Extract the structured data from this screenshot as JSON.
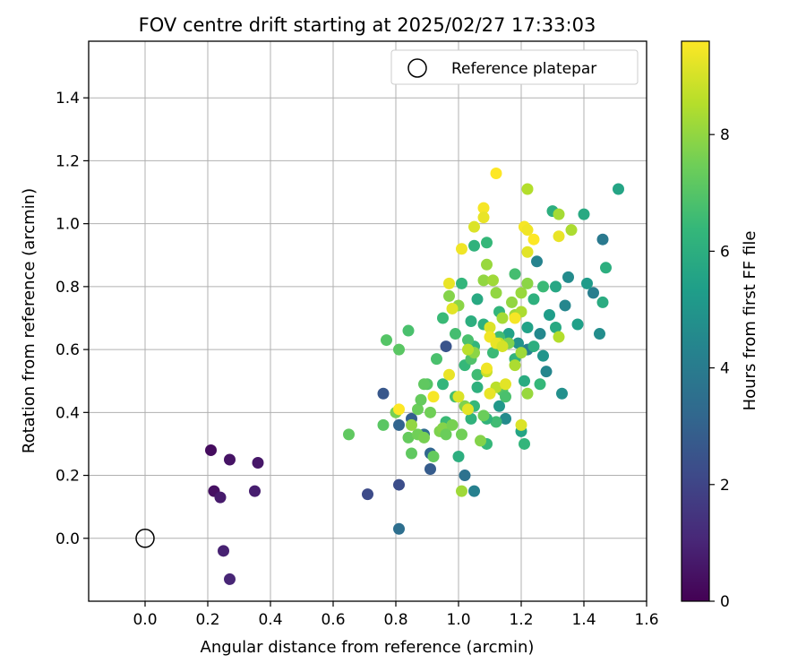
{
  "chart_data": {
    "type": "scatter",
    "title": "FOV centre drift starting at 2025/02/27 17:33:03",
    "xlabel": "Angular distance from reference (arcmin)",
    "ylabel": "Rotation from reference (arcmin)",
    "xlim": [
      -0.18,
      1.6
    ],
    "ylim": [
      -0.2,
      1.58
    ],
    "x_ticks": [
      0.0,
      0.2,
      0.4,
      0.6,
      0.8,
      1.0,
      1.2,
      1.4,
      1.6
    ],
    "x_tick_labels": [
      "0.0",
      "0.2",
      "0.4",
      "0.6",
      "0.8",
      "1.0",
      "1.2",
      "1.4",
      "1.6"
    ],
    "y_ticks": [
      0.0,
      0.2,
      0.4,
      0.6,
      0.8,
      1.0,
      1.2,
      1.4
    ],
    "y_tick_labels": [
      "0.0",
      "0.2",
      "0.4",
      "0.6",
      "0.8",
      "1.0",
      "1.2",
      "1.4"
    ],
    "grid": true,
    "legend": {
      "position": "top-right",
      "label": "Reference platepar"
    },
    "reference_point": {
      "x": 0.0,
      "y": 0.0
    },
    "colorbar": {
      "label": "Hours from first FF file",
      "colormap": "viridis",
      "range": [
        0,
        9.6
      ],
      "ticks": [
        0,
        2,
        4,
        6,
        8
      ],
      "tick_labels": [
        "0",
        "2",
        "4",
        "6",
        "8"
      ]
    },
    "series": [
      {
        "points": [
          [
            0.21,
            0.28,
            0.3
          ],
          [
            0.27,
            0.25,
            0.5
          ],
          [
            0.36,
            0.24,
            0.6
          ],
          [
            0.22,
            0.15,
            0.4
          ],
          [
            0.24,
            0.13,
            0.7
          ],
          [
            0.35,
            0.15,
            0.8
          ],
          [
            0.25,
            -0.04,
            0.9
          ],
          [
            0.27,
            -0.13,
            1.0
          ],
          [
            0.71,
            0.14,
            2.2
          ],
          [
            0.81,
            0.17,
            2.3
          ],
          [
            0.81,
            0.03,
            3.5
          ],
          [
            0.76,
            0.46,
            2.6
          ],
          [
            0.91,
            0.22,
            2.8
          ],
          [
            0.96,
            0.61,
            2.5
          ],
          [
            0.85,
            0.38,
            2.9
          ],
          [
            0.91,
            0.27,
            3.2
          ],
          [
            1.02,
            0.2,
            3.6
          ],
          [
            1.05,
            0.15,
            4.2
          ],
          [
            0.81,
            0.36,
            3.1
          ],
          [
            0.89,
            0.33,
            3.4
          ],
          [
            1.46,
            0.95,
            3.9
          ],
          [
            1.25,
            0.88,
            4.3
          ],
          [
            1.43,
            0.78,
            4.1
          ],
          [
            1.34,
            0.74,
            4.4
          ],
          [
            1.35,
            0.83,
            4.6
          ],
          [
            1.45,
            0.65,
            4.7
          ],
          [
            1.33,
            0.46,
            4.8
          ],
          [
            1.26,
            0.65,
            4.5
          ],
          [
            1.22,
            0.6,
            4.2
          ],
          [
            1.19,
            0.62,
            4.9
          ],
          [
            1.27,
            0.58,
            5.0
          ],
          [
            1.28,
            0.53,
            4.4
          ],
          [
            1.15,
            0.38,
            4.6
          ],
          [
            1.13,
            0.42,
            5.1
          ],
          [
            1.41,
            0.81,
            5.2
          ],
          [
            1.38,
            0.68,
            5.4
          ],
          [
            1.29,
            0.71,
            5.3
          ],
          [
            1.16,
            0.65,
            5.5
          ],
          [
            1.4,
            1.03,
            5.8
          ],
          [
            1.51,
            1.11,
            5.6
          ],
          [
            1.47,
            0.86,
            6.0
          ],
          [
            1.46,
            0.75,
            5.9
          ],
          [
            1.3,
            1.04,
            6.0
          ],
          [
            1.31,
            0.8,
            5.7
          ],
          [
            1.31,
            0.67,
            5.8
          ],
          [
            1.24,
            0.76,
            6.1
          ],
          [
            1.22,
            0.67,
            5.5
          ],
          [
            1.18,
            0.57,
            6.2
          ],
          [
            1.21,
            0.5,
            5.9
          ],
          [
            1.2,
            0.34,
            5.6
          ],
          [
            1.21,
            0.3,
            6.3
          ],
          [
            1.24,
            0.61,
            6.0
          ],
          [
            1.26,
            0.49,
            6.4
          ],
          [
            1.27,
            0.8,
            6.5
          ],
          [
            1.18,
            0.84,
            6.7
          ],
          [
            1.09,
            0.94,
            6.4
          ],
          [
            1.05,
            0.93,
            6.2
          ],
          [
            1.06,
            0.76,
            5.8
          ],
          [
            1.08,
            0.68,
            6.1
          ],
          [
            1.13,
            0.72,
            6.3
          ],
          [
            1.11,
            0.59,
            6.5
          ],
          [
            1.13,
            0.64,
            6.6
          ],
          [
            1.04,
            0.69,
            6.0
          ],
          [
            1.05,
            0.61,
            6.3
          ],
          [
            1.02,
            0.55,
            6.4
          ],
          [
            1.03,
            0.63,
            6.8
          ],
          [
            1.06,
            0.52,
            6.6
          ],
          [
            1.04,
            0.57,
            6.9
          ],
          [
            1.01,
            0.81,
            6.3
          ],
          [
            0.95,
            0.7,
            6.5
          ],
          [
            0.99,
            0.65,
            6.7
          ],
          [
            1.05,
            0.42,
            6.4
          ],
          [
            1.04,
            0.38,
            6.2
          ],
          [
            0.95,
            0.49,
            6.3
          ],
          [
            0.93,
            0.57,
            6.8
          ],
          [
            0.9,
            0.49,
            7.0
          ],
          [
            1.06,
            0.48,
            6.1
          ],
          [
            1.0,
            0.26,
            6.0
          ],
          [
            0.89,
            0.49,
            7.2
          ],
          [
            0.96,
            0.37,
            6.5
          ],
          [
            0.99,
            0.45,
            6.7
          ],
          [
            0.84,
            0.66,
            6.8
          ],
          [
            0.77,
            0.63,
            7.0
          ],
          [
            0.81,
            0.6,
            7.1
          ],
          [
            0.65,
            0.33,
            7.2
          ],
          [
            0.76,
            0.36,
            7.1
          ],
          [
            1.09,
            0.3,
            6.4
          ],
          [
            1.12,
            0.37,
            6.6
          ],
          [
            1.14,
            0.47,
            7.0
          ],
          [
            1.15,
            0.45,
            6.8
          ],
          [
            1.09,
            0.38,
            6.2
          ],
          [
            0.84,
            0.32,
            7.3
          ],
          [
            0.87,
            0.33,
            7.5
          ],
          [
            0.89,
            0.32,
            7.6
          ],
          [
            0.87,
            0.41,
            7.4
          ],
          [
            0.88,
            0.44,
            7.3
          ],
          [
            0.91,
            0.4,
            7.5
          ],
          [
            0.94,
            0.34,
            7.7
          ],
          [
            0.95,
            0.35,
            7.8
          ],
          [
            0.96,
            0.33,
            7.4
          ],
          [
            0.98,
            0.36,
            7.6
          ],
          [
            0.92,
            0.26,
            7.3
          ],
          [
            0.85,
            0.27,
            7.2
          ],
          [
            1.01,
            0.33,
            7.5
          ],
          [
            1.02,
            0.42,
            7.7
          ],
          [
            1.05,
            0.59,
            7.9
          ],
          [
            1.07,
            0.31,
            7.8
          ],
          [
            1.08,
            0.39,
            7.4
          ],
          [
            0.97,
            0.77,
            7.8
          ],
          [
            1.0,
            0.74,
            7.9
          ],
          [
            1.08,
            0.82,
            8.0
          ],
          [
            1.09,
            0.87,
            8.1
          ],
          [
            1.11,
            0.82,
            8.2
          ],
          [
            1.12,
            0.78,
            8.0
          ],
          [
            1.14,
            0.7,
            8.3
          ],
          [
            1.18,
            0.71,
            8.2
          ],
          [
            1.17,
            0.75,
            8.0
          ],
          [
            1.2,
            0.78,
            8.1
          ],
          [
            1.2,
            0.72,
            8.4
          ],
          [
            1.22,
            0.81,
            7.9
          ],
          [
            1.2,
            0.59,
            8.2
          ],
          [
            1.16,
            0.62,
            7.7
          ],
          [
            1.18,
            0.55,
            8.4
          ],
          [
            1.22,
            0.46,
            8.1
          ],
          [
            1.21,
            0.99,
            8.6
          ],
          [
            1.22,
            1.11,
            8.5
          ],
          [
            1.32,
            1.03,
            8.3
          ],
          [
            1.36,
            0.98,
            8.4
          ],
          [
            1.32,
            0.64,
            8.5
          ],
          [
            1.01,
            0.15,
            8.2
          ],
          [
            0.85,
            0.36,
            8.0
          ],
          [
            0.8,
            0.4,
            7.6
          ],
          [
            1.09,
            0.53,
            8.8
          ],
          [
            1.13,
            0.62,
            8.7
          ],
          [
            1.03,
            0.6,
            8.6
          ],
          [
            1.12,
            0.48,
            8.6
          ],
          [
            0.97,
            0.81,
            9.3
          ],
          [
            0.98,
            0.73,
            9.2
          ],
          [
            1.01,
            0.92,
            9.4
          ],
          [
            1.05,
            0.99,
            9.1
          ],
          [
            1.08,
            1.05,
            9.5
          ],
          [
            1.08,
            1.02,
            9.3
          ],
          [
            1.12,
            1.16,
            9.6
          ],
          [
            1.21,
            0.99,
            9.5
          ],
          [
            1.22,
            0.91,
            9.2
          ],
          [
            1.22,
            0.98,
            9.4
          ],
          [
            1.24,
            0.95,
            9.6
          ],
          [
            1.32,
            0.96,
            9.3
          ],
          [
            1.1,
            0.67,
            9.1
          ],
          [
            1.1,
            0.64,
            9.4
          ],
          [
            1.12,
            0.62,
            9.3
          ],
          [
            1.15,
            0.49,
            9.2
          ],
          [
            1.18,
            0.7,
            9.5
          ],
          [
            1.2,
            0.36,
            9.1
          ],
          [
            1.09,
            0.54,
            9.4
          ],
          [
            1.1,
            0.46,
            9.3
          ],
          [
            1.03,
            0.41,
            9.2
          ],
          [
            0.97,
            0.52,
            9.3
          ],
          [
            0.92,
            0.45,
            9.5
          ],
          [
            0.81,
            0.41,
            9.6
          ],
          [
            1.0,
            0.45,
            9.1
          ],
          [
            1.14,
            0.61,
            9.0
          ]
        ]
      }
    ]
  }
}
